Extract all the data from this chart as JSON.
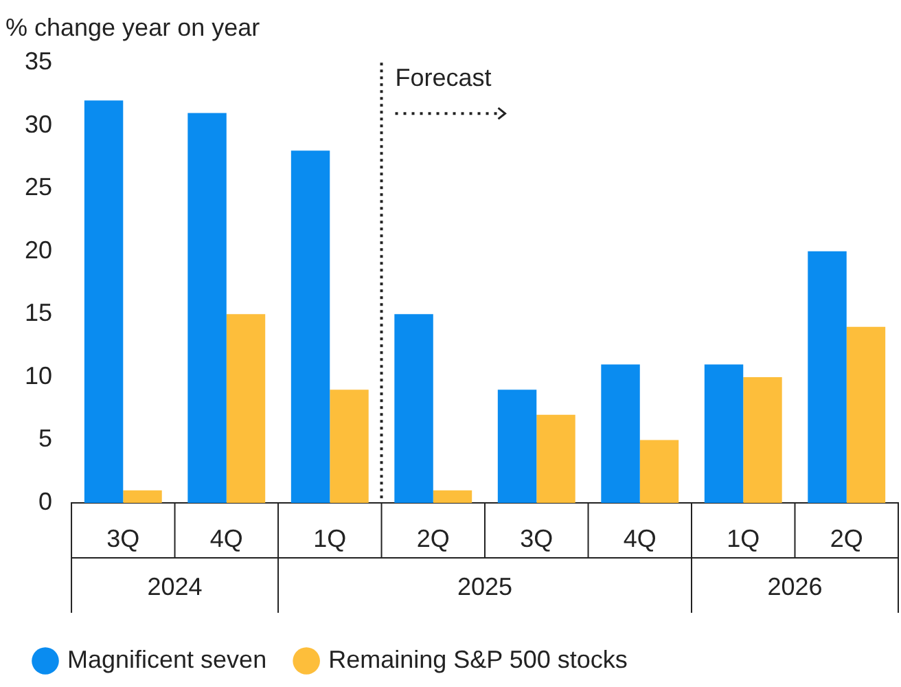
{
  "chart_data": {
    "type": "bar",
    "ylabel": "% change year on year",
    "categories": [
      "3Q",
      "4Q",
      "1Q",
      "2Q",
      "3Q",
      "4Q",
      "1Q",
      "2Q"
    ],
    "annotations": [
      "2024",
      "2025",
      "2026",
      "Forecast"
    ],
    "series": [
      {
        "name": "Magnificent seven",
        "color": "#0a8cf0",
        "values": [
          32,
          31,
          28,
          15,
          9,
          11,
          11,
          20
        ]
      },
      {
        "name": "Remaining S&P 500 stocks",
        "color": "#fdbe3b",
        "values": [
          1,
          15,
          9,
          1,
          7,
          5,
          10,
          14
        ]
      }
    ],
    "ylim": [
      0,
      35
    ],
    "yticks": [
      0,
      5,
      10,
      15,
      20,
      25,
      30,
      35
    ],
    "grid": false,
    "legend": "bottom"
  }
}
